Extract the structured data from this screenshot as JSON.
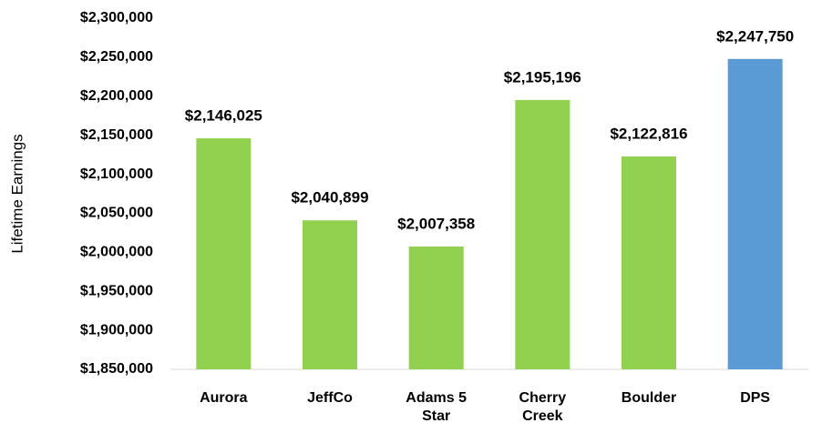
{
  "chart_data": {
    "type": "bar",
    "y_label": "Lifetime Earnings",
    "categories": [
      "Aurora",
      "JeffCo",
      "Adams 5 Star",
      "Cherry Creek",
      "Boulder",
      "DPS"
    ],
    "values": [
      2146025,
      2040899,
      2007358,
      2195196,
      2122816,
      2247750
    ],
    "value_labels": [
      "$2,146,025",
      "$2,040,899",
      "$2,007,358",
      "$2,195,196",
      "$2,122,816",
      "$2,247,750"
    ],
    "colors": [
      "#92d050",
      "#92d050",
      "#92d050",
      "#92d050",
      "#92d050",
      "#5b9bd5"
    ],
    "ylim": [
      1850000,
      2300000
    ],
    "yticks": [
      {
        "value": 1850000,
        "label": "$1,850,000"
      },
      {
        "value": 1900000,
        "label": "$1,900,000"
      },
      {
        "value": 1950000,
        "label": "$1,950,000"
      },
      {
        "value": 2000000,
        "label": "$2,000,000"
      },
      {
        "value": 2050000,
        "label": "$2,050,000"
      },
      {
        "value": 2100000,
        "label": "$2,100,000"
      },
      {
        "value": 2150000,
        "label": "$2,150,000"
      },
      {
        "value": 2200000,
        "label": "$2,200,000"
      },
      {
        "value": 2250000,
        "label": "$2,250,000"
      },
      {
        "value": 2300000,
        "label": "$2,300,000"
      }
    ],
    "grid": false
  }
}
